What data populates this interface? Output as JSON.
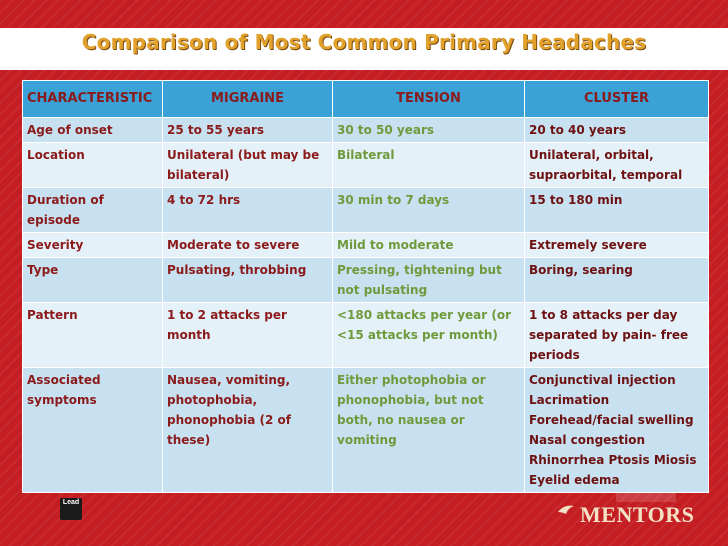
{
  "title": "Comparison of Most Common Primary Headaches",
  "table": {
    "headers": [
      "CHARACTERISTIC",
      "MIGRAINE",
      "TENSION",
      "CLUSTER"
    ],
    "rows": [
      {
        "characteristic": "Age of onset",
        "migraine": "25 to 55 years",
        "tension": "30 to 50 years",
        "cluster": "20 to 40 years"
      },
      {
        "characteristic": "Location",
        "migraine": "Unilateral (but may be bilateral)",
        "tension": "Bilateral",
        "cluster": "Unilateral, orbital, supraorbital, temporal"
      },
      {
        "characteristic": "Duration of episode",
        "migraine": "4 to 72 hrs",
        "tension": "30 min to 7 days",
        "cluster": "15 to 180 min"
      },
      {
        "characteristic": "Severity",
        "migraine": "Moderate to severe",
        "tension": "Mild to moderate",
        "cluster": "Extremely severe"
      },
      {
        "characteristic": "Type",
        "migraine": "Pulsating, throbbing",
        "tension": "Pressing, tightening but not pulsating",
        "cluster": "Boring, searing"
      },
      {
        "characteristic": "Pattern",
        "migraine": "1 to 2 attacks per month",
        "tension": "<180 attacks per year (or <15 attacks per month)",
        "cluster": "1 to 8 attacks per day separated by pain- free periods"
      },
      {
        "characteristic": "Associated symptoms",
        "migraine": "Nausea, vomiting, photophobia, phonophobia (2 of these)",
        "tension": "Either photophobia or phonophobia, but not both, no nausea or vomiting",
        "cluster": "Conjunctival injection Lacrimation Forehead/facial swelling Nasal congestion Rhinorrhea Ptosis Miosis Eyelid edema"
      }
    ]
  },
  "footer": {
    "left_logo": "Lead",
    "right_logo": "MENTORS"
  },
  "colors": {
    "background": "#c41d22",
    "header_row": "#3aa2d6",
    "row_odd": "#c7e1f1",
    "row_even": "#e4f1f9",
    "title": "#e2a12b",
    "migraine_text": "#8b1a1a",
    "tension_text": "#6f9a3c",
    "cluster_text": "#6d1111"
  }
}
